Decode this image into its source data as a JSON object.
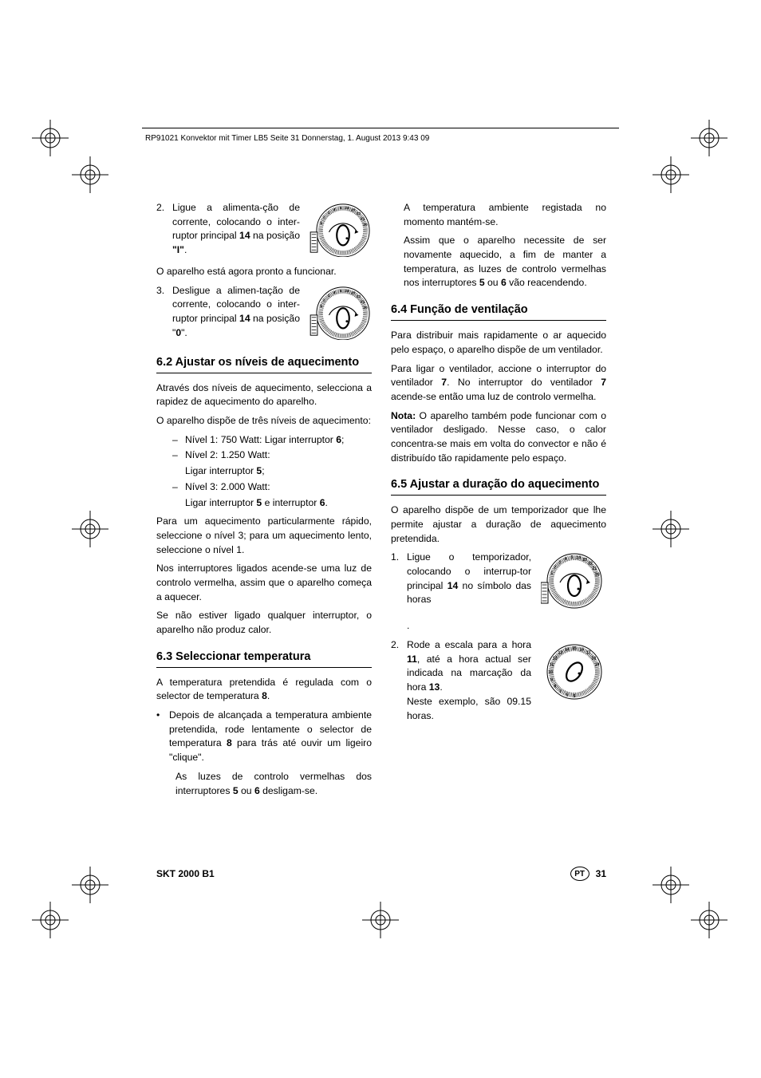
{
  "header_text": "RP91021 Konvektor mit Timer LB5  Seite 31  Donnerstag, 1. August 2013  9:43 09",
  "left": {
    "item2_num": "2.",
    "item2_txt": "Ligue a alimenta-ção de corrente, colocando o inter-ruptor principal 14 na posição \"I\".",
    "ready": "O aparelho está agora pronto a funcionar.",
    "item3_num": "3.",
    "item3_txt": "Desligue a alimen-tação de corrente, colocando o inter-ruptor principal 14 na posição \"0\".",
    "h62": "6.2 Ajustar os níveis de aquecimento",
    "p62a": "Através dos níveis de aquecimento, selecciona a rapidez de aquecimento do aparelho.",
    "p62b": "O aparelho dispõe de três níveis de aquecimento:",
    "lvl1": "Nível 1: 750 Watt: Ligar interruptor 6;",
    "lvl2a": "Nível 2: 1.250 Watt:",
    "lvl2b": "Ligar interruptor 5;",
    "lvl3a": "Nível 3: 2.000 Watt:",
    "lvl3b": "Ligar interruptor 5 e interruptor 6.",
    "p62c": "Para um aquecimento particularmente rápido, seleccione o nível 3; para um aquecimento lento, seleccione o nível 1.",
    "p62d": "Nos interruptores ligados acende-se uma luz de controlo vermelha, assim que o aparelho começa a aquecer.",
    "p62e": "Se não estiver ligado qualquer interruptor, o aparelho não produz calor.",
    "h63": "6.3 Seleccionar temperatura",
    "p63a": "A temperatura pretendida é regulada com o selector de temperatura 8.",
    "b63_1": "Depois de alcançada a temperatura ambiente pretendida, rode lentamente o selector de temperatura 8 para trás até ouvir um ligeiro \"clique\".",
    "b63_2": "As luzes de controlo vermelhas dos interruptores 5 ou 6 desligam-se."
  },
  "right": {
    "p63c": "A temperatura ambiente registada no momento mantém-se.",
    "p63d": "Assim que o aparelho necessite de ser novamente aquecido, a fim de manter a temperatura, as luzes de controlo vermelhas nos interruptores 5 ou 6 vão reacendendo.",
    "h64": "6.4 Função de ventilação",
    "p64a": "Para distribuir mais rapidamente o ar aquecido pelo espaço, o aparelho dispõe de um ventilador.",
    "p64b": "Para ligar o ventilador, accione o interruptor do ventilador 7. No interruptor do ventilador 7 acende-se então uma luz de controlo vermelha.",
    "nota_label": "Nota:",
    "p64c": " O aparelho também pode funcionar com o ventilador desligado. Nesse caso, o calor concentra-se mais em volta do convector e não é distribuído tão rapidamente pelo espaço.",
    "h65": "6.5 Ajustar a duração do aquecimento",
    "p65a": "O aparelho dispõe de um temporizador que lhe permite ajustar a duração de aquecimento pretendida.",
    "item1_num": "1.",
    "item1_txt": "Ligue o temporizador, colocando o interrup-tor principal 14 no símbolo das horas",
    "dot": ".",
    "item2_num": "2.",
    "item2_txt": "Rode a escala para a hora 11, até a hora actual ser indicada na marcação da hora 13.",
    "item2_txt2": "Neste exemplo, são 09.15 horas."
  },
  "footer": {
    "model": "SKT 2000 B1",
    "lang": "PT",
    "page": "31"
  },
  "dial": {
    "outer_nums": [
      "1",
      "2",
      "3",
      "4",
      "5",
      "24",
      "23",
      "22",
      "21",
      "20"
    ],
    "rotated_nums": [
      "6",
      "7",
      "8",
      "9",
      "10",
      "11",
      "12",
      "13",
      "14",
      "15",
      "16",
      "17",
      "18",
      "19",
      "5",
      "4",
      "3",
      "2",
      "1"
    ]
  }
}
